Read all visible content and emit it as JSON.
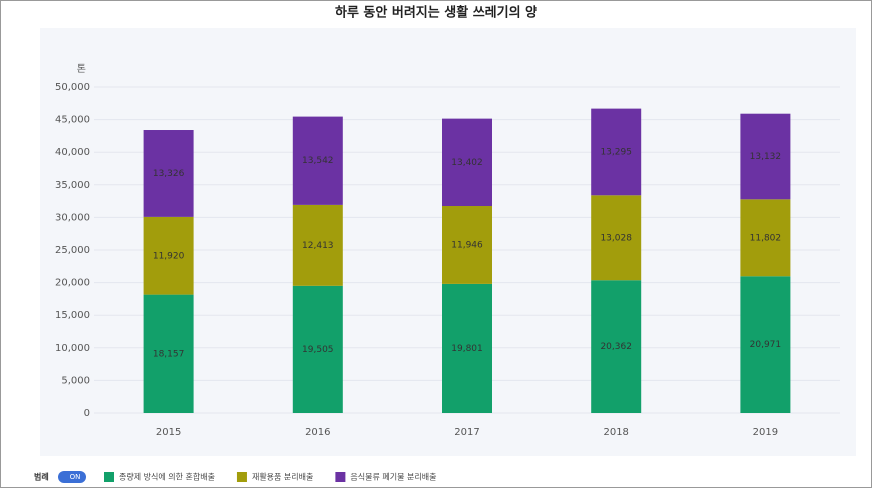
{
  "chart_data": {
    "type": "stacked_bar",
    "title": "하루 동안 버려지는 생활 쓰레기의 양",
    "y_unit": "톤",
    "categories": [
      "2015",
      "2016",
      "2017",
      "2018",
      "2019"
    ],
    "series": [
      {
        "name": "종량제 방식에 의한 혼합배출",
        "color": "#12a06a",
        "values": [
          18157,
          19505,
          19801,
          20362,
          20971
        ],
        "value_labels": [
          "18,157",
          "19,505",
          "19,801",
          "20,362",
          "20,971"
        ]
      },
      {
        "name": "재활용품 분리배출",
        "color": "#a29d0c",
        "values": [
          11920,
          12413,
          11946,
          13028,
          11802
        ],
        "value_labels": [
          "11,920",
          "12,413",
          "11,946",
          "13,028",
          "11,802"
        ]
      },
      {
        "name": "음식물류 폐기물 분리배출",
        "color": "#6b32a3",
        "values": [
          13326,
          13542,
          13402,
          13295,
          13132
        ],
        "value_labels": [
          "13,326",
          "13,542",
          "13,402",
          "13,295",
          "13,132"
        ]
      }
    ],
    "ylim": [
      0,
      50000
    ],
    "yticks": [
      0,
      {
        "value": 5000,
        "label": "5,000"
      },
      {
        "value": 10000,
        "label": "10,000"
      },
      {
        "value": 15000,
        "label": "15,000"
      },
      {
        "value": 20000,
        "label": "20,000"
      },
      {
        "value": 25000,
        "label": "25,000"
      },
      {
        "value": 30000,
        "label": "30,000"
      },
      {
        "value": 35000,
        "label": "35,000"
      },
      {
        "value": 40000,
        "label": "40,000"
      },
      {
        "value": 45000,
        "label": "45,000"
      },
      {
        "value": 50000,
        "label": "50,000"
      }
    ],
    "grid": true,
    "legend_title": "범례",
    "legend_toggle": "ON",
    "legend_position": "bottom-left"
  }
}
